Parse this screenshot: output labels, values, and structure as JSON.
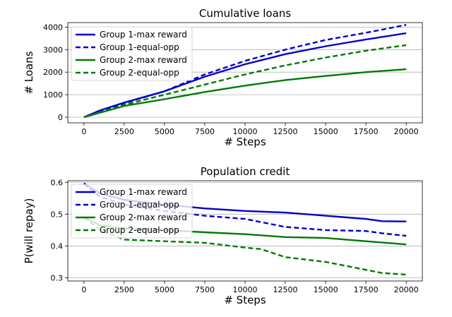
{
  "chart_data": [
    {
      "type": "line",
      "title": "Cumulative loans",
      "xlabel": "# Steps",
      "ylabel": "# Loans",
      "xlim": [
        -1000,
        21000
      ],
      "ylim": [
        -250,
        4200
      ],
      "xticks": [
        0,
        2500,
        5000,
        7500,
        10000,
        12500,
        15000,
        17500,
        20000
      ],
      "yticks": [
        0,
        1000,
        2000,
        3000,
        4000
      ],
      "grid": "y",
      "legend_position": "upper-left",
      "series": [
        {
          "name": "Group 1-max reward",
          "color": "#0000cc",
          "style": "solid",
          "x": [
            0,
            1000,
            2500,
            5000,
            7500,
            10000,
            12500,
            15000,
            17500,
            20000
          ],
          "y": [
            0,
            300,
            650,
            1150,
            1800,
            2350,
            2800,
            3150,
            3450,
            3730
          ]
        },
        {
          "name": "Group 1-equal-opp",
          "color": "#0000cc",
          "style": "dashed",
          "x": [
            0,
            1000,
            2500,
            5000,
            7500,
            10000,
            12500,
            15000,
            17500,
            20000
          ],
          "y": [
            0,
            280,
            620,
            1150,
            1900,
            2500,
            3000,
            3430,
            3750,
            4100
          ]
        },
        {
          "name": "Group 2-max reward",
          "color": "#007a00",
          "style": "solid",
          "x": [
            0,
            1000,
            2500,
            5000,
            7500,
            10000,
            12500,
            15000,
            17500,
            20000
          ],
          "y": [
            0,
            200,
            500,
            800,
            1120,
            1400,
            1650,
            1830,
            2000,
            2130
          ]
        },
        {
          "name": "Group 2-equal-opp",
          "color": "#007a00",
          "style": "dashed",
          "x": [
            0,
            1000,
            2500,
            5000,
            7500,
            10000,
            12500,
            15000,
            17500,
            20000
          ],
          "y": [
            0,
            230,
            550,
            1000,
            1450,
            1900,
            2300,
            2650,
            2950,
            3200
          ]
        }
      ]
    },
    {
      "type": "line",
      "title": "Population credit",
      "xlabel": "# Steps",
      "ylabel": "P(will repay)",
      "xlim": [
        -1000,
        21000
      ],
      "ylim": [
        0.29,
        0.605
      ],
      "xticks": [
        0,
        2500,
        5000,
        7500,
        10000,
        12500,
        15000,
        17500,
        20000
      ],
      "yticks": [
        0.3,
        0.4,
        0.5,
        0.6
      ],
      "grid": "y",
      "legend_position": "upper-left",
      "series": [
        {
          "name": "Group 1-max reward",
          "color": "#0000cc",
          "style": "solid",
          "x": [
            0,
            1000,
            2500,
            5000,
            7500,
            10000,
            12500,
            15000,
            17500,
            18500,
            20000
          ],
          "y": [
            0.597,
            0.565,
            0.545,
            0.53,
            0.518,
            0.51,
            0.505,
            0.495,
            0.485,
            0.478,
            0.477
          ]
        },
        {
          "name": "Group 1-equal-opp",
          "color": "#0000cc",
          "style": "dashed",
          "x": [
            0,
            1000,
            2500,
            5000,
            7500,
            10000,
            12500,
            15000,
            17500,
            18500,
            20000
          ],
          "y": [
            0.595,
            0.555,
            0.53,
            0.51,
            0.495,
            0.485,
            0.46,
            0.45,
            0.447,
            0.44,
            0.432
          ]
        },
        {
          "name": "Group 2-max reward",
          "color": "#007a00",
          "style": "solid",
          "x": [
            0,
            1000,
            2500,
            5000,
            7500,
            10000,
            12500,
            15000,
            17500,
            20000
          ],
          "y": [
            0.49,
            0.465,
            0.455,
            0.45,
            0.443,
            0.437,
            0.428,
            0.425,
            0.415,
            0.405
          ]
        },
        {
          "name": "Group 2-equal-opp",
          "color": "#007a00",
          "style": "dashed",
          "x": [
            0,
            1000,
            2500,
            5000,
            7500,
            10000,
            11000,
            12500,
            15000,
            17500,
            18500,
            20000
          ],
          "y": [
            0.49,
            0.45,
            0.42,
            0.415,
            0.41,
            0.395,
            0.39,
            0.365,
            0.35,
            0.325,
            0.315,
            0.31
          ]
        }
      ]
    }
  ]
}
